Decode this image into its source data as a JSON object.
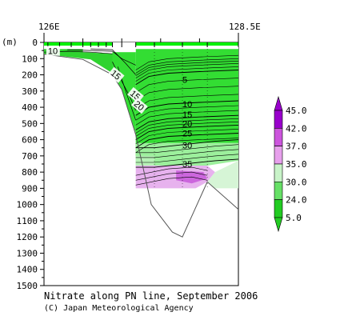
{
  "chart_data": {
    "type": "contour-section",
    "title": "Nitrate along PN line, September 2006",
    "credit": "(C) Japan Meteorological Agency",
    "x_axis": {
      "ticks": [
        "126E",
        "128.5E"
      ],
      "range": [
        126.0,
        128.5
      ]
    },
    "y_axis": {
      "unit_label": "(m)",
      "ticks": [
        "0",
        "100",
        "200",
        "300",
        "400",
        "500",
        "600",
        "700",
        "800",
        "900",
        "1000",
        "1100",
        "1200",
        "1300",
        "1400",
        "1500"
      ],
      "range": [
        0,
        1500
      ],
      "inverted": true
    },
    "contour_labels": [
      "10",
      "15",
      "15",
      "20",
      "5",
      "10",
      "15",
      "20",
      "25",
      "30",
      "35"
    ],
    "colorbar": {
      "labels": [
        "45.0",
        "42.0",
        "37.0",
        "35.0",
        "30.0",
        "24.0",
        "5.0"
      ],
      "colors": [
        "#9900cc",
        "#cc55dd",
        "#e7a0ec",
        "#c8f3c8",
        "#66e066",
        "#22cc22"
      ]
    },
    "bottom_profile": {
      "lon": [
        126.0,
        126.5,
        126.88,
        127.0,
        127.18,
        127.38,
        127.65,
        127.78,
        128.1,
        128.5
      ],
      "depth": [
        72,
        105,
        200,
        290,
        570,
        1000,
        1170,
        1200,
        860,
        1030
      ]
    },
    "colors": {
      "green": "#33dd33",
      "bright_green": "#00f000",
      "light_violet": "#e7b2ee",
      "violet": "#cc66dd",
      "grey_mask": "#ffffff"
    }
  }
}
